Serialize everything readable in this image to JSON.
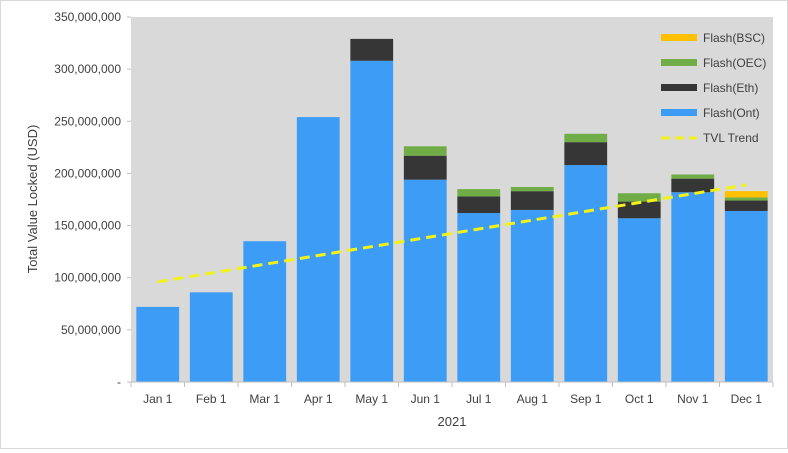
{
  "chart_data": {
    "type": "bar",
    "stacked": true,
    "title": "",
    "xlabel": "2021",
    "ylabel": "Total Value Locked (USD)",
    "ylim": [
      0,
      350000000
    ],
    "yticks": [
      {
        "value": 0,
        "label": "-"
      },
      {
        "value": 50000000,
        "label": "50,000,000"
      },
      {
        "value": 100000000,
        "label": "100,000,000"
      },
      {
        "value": 150000000,
        "label": "150,000,000"
      },
      {
        "value": 200000000,
        "label": "200,000,000"
      },
      {
        "value": 250000000,
        "label": "250,000,000"
      },
      {
        "value": 300000000,
        "label": "300,000,000"
      },
      {
        "value": 350000000,
        "label": "350,000,000"
      }
    ],
    "categories": [
      "Jan 1",
      "Feb 1",
      "Mar 1",
      "Apr 1",
      "May 1",
      "Jun 1",
      "Jul 1",
      "Aug 1",
      "Sep 1",
      "Oct 1",
      "Nov 1",
      "Dec 1"
    ],
    "series": [
      {
        "name": "Flash(Ont)",
        "color": "#3d9cf5",
        "values": [
          72000000,
          86000000,
          135000000,
          254000000,
          308000000,
          194000000,
          162000000,
          165000000,
          208000000,
          157000000,
          182000000,
          164000000
        ]
      },
      {
        "name": "Flash(Eth)",
        "color": "#363636",
        "values": [
          0,
          0,
          0,
          0,
          21000000,
          23000000,
          16000000,
          18000000,
          22000000,
          16000000,
          13000000,
          10000000
        ]
      },
      {
        "name": "Flash(OEC)",
        "color": "#70ad47",
        "values": [
          0,
          0,
          0,
          0,
          0,
          9000000,
          7000000,
          4000000,
          8000000,
          8000000,
          4000000,
          3000000
        ]
      },
      {
        "name": "Flash(BSC)",
        "color": "#ffc000",
        "values": [
          0,
          0,
          0,
          0,
          0,
          0,
          0,
          0,
          0,
          0,
          0,
          6000000
        ]
      }
    ],
    "trend": {
      "name": "TVL Trend",
      "color": "#f2f21a",
      "start": 96000000,
      "end": 189000000
    },
    "legend": {
      "placement": "top-right",
      "order": [
        "Flash(BSC)",
        "Flash(OEC)",
        "Flash(Eth)",
        "Flash(Ont)",
        "TVL Trend"
      ]
    },
    "plot_background": "#d9d9d9",
    "grid": false
  }
}
